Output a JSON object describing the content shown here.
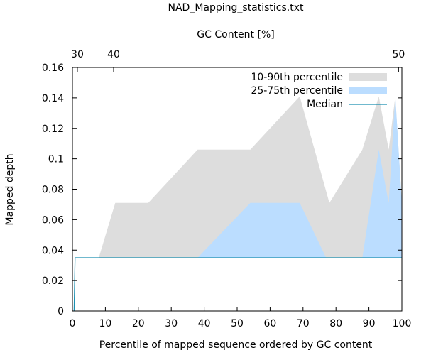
{
  "chart_data": {
    "type": "area",
    "title": "NAD_Mapping_statistics.txt",
    "x2label": "GC Content [%]",
    "xlabel": "Percentile of mapped sequence ordered by GC content",
    "ylabel": "Mapped depth",
    "xlim": [
      0,
      100
    ],
    "ylim": [
      0,
      0.16
    ],
    "x_ticks": [
      0,
      10,
      20,
      30,
      40,
      50,
      60,
      70,
      80,
      90,
      100
    ],
    "y_ticks": [
      0,
      0.02,
      0.04,
      0.06,
      0.08,
      0.1,
      0.12,
      0.14,
      0.16
    ],
    "x2_ticks": [
      {
        "label": "30",
        "at": 1.5
      },
      {
        "label": "40",
        "at": 12.5
      },
      {
        "label": "50",
        "at": 99
      }
    ],
    "legend_position": "top-right",
    "grid": false,
    "series": [
      {
        "name": "10-90th percentile",
        "color": "#dddddd",
        "x": [
          8,
          13,
          23,
          38,
          54,
          69,
          78,
          88,
          93,
          96,
          98,
          100
        ],
        "lower": [
          0.035,
          0.035,
          0.035,
          0.035,
          0.035,
          0.035,
          0.035,
          0.035,
          0.035,
          0.035,
          0.035,
          0.035
        ],
        "upper": [
          0.035,
          0.071,
          0.071,
          0.106,
          0.106,
          0.141,
          0.071,
          0.106,
          0.141,
          0.106,
          0.141,
          0.071
        ]
      },
      {
        "name": "25-75th percentile",
        "color": "#bbddff",
        "x": [
          38,
          54,
          69,
          77,
          88,
          93,
          96,
          98,
          100
        ],
        "lower": [
          0.035,
          0.035,
          0.035,
          0.035,
          0.035,
          0.035,
          0.035,
          0.035,
          0.035
        ],
        "upper": [
          0.035,
          0.071,
          0.071,
          0.035,
          0.035,
          0.106,
          0.071,
          0.141,
          0.071
        ]
      },
      {
        "name": "Median",
        "color": "#1a8fb0",
        "x": [
          0.5,
          0.8,
          100
        ],
        "y": [
          0,
          0.035,
          0.035
        ]
      }
    ]
  }
}
